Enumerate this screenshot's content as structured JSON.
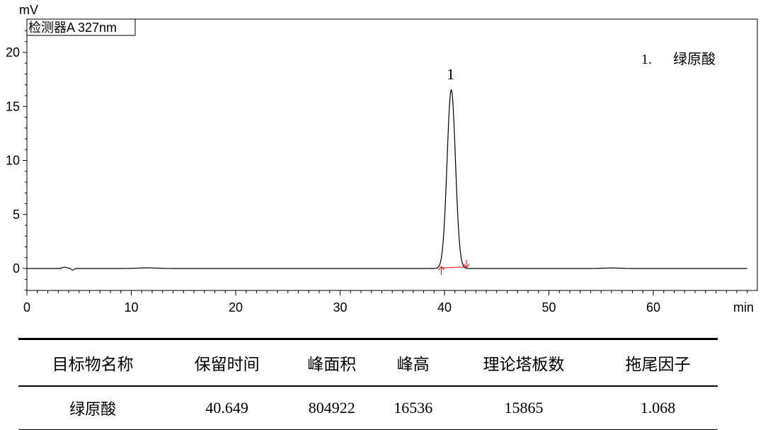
{
  "chart_data": {
    "type": "line",
    "ylabel": "mV",
    "xlabel": "min",
    "detector_label": "检测器A 327nm",
    "xlim": [
      0,
      70
    ],
    "ylim": [
      -2,
      23
    ],
    "x_ticks": [
      0,
      10,
      20,
      30,
      40,
      50,
      60
    ],
    "y_ticks": [
      0,
      5,
      10,
      15,
      20
    ],
    "peak": {
      "number": "1",
      "retention_time": 40.649,
      "height": 16.54,
      "start": 39.7,
      "end": 42.1
    },
    "baseline_wiggle": {
      "x": 3.6,
      "min": -0.15,
      "max": 0.12
    },
    "legend": {
      "number": "1.",
      "name": "绿原酸"
    },
    "colors": {
      "trace": "#000000",
      "integration": "#ff0000"
    }
  },
  "table": {
    "headers": [
      "目标物名称",
      "保留时间",
      "峰面积",
      "峰高",
      "理论塔板数",
      "拖尾因子"
    ],
    "rows": [
      [
        "绿原酸",
        "40.649",
        "804922",
        "16536",
        "15865",
        "1.068"
      ]
    ]
  }
}
